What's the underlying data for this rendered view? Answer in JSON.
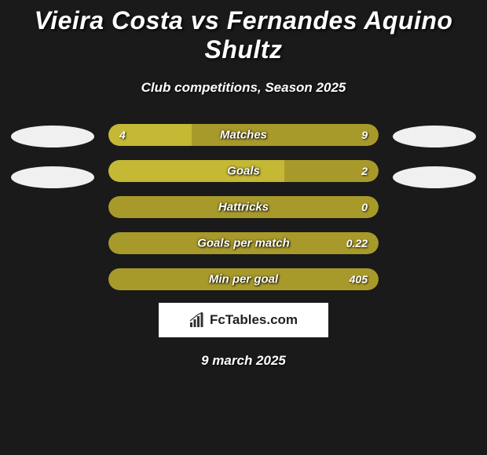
{
  "background_color": "#1a1a1a",
  "title": "Vieira Costa vs Fernandes Aquino Shultz",
  "title_color": "#ffffff",
  "title_fontsize": 32,
  "subtitle": "Club competitions, Season 2025",
  "subtitle_color": "#ffffff",
  "subtitle_fontsize": 17,
  "player_left_color": "#f0f0f0",
  "player_right_color": "#f0f0f0",
  "bar_base_color": "#a89a2a",
  "bar_fill_color": "#c4b834",
  "bar_text_color": "#ffffff",
  "stats": [
    {
      "label": "Matches",
      "left_value": "4",
      "right_value": "9",
      "fill_pct": 30.8
    },
    {
      "label": "Goals",
      "left_value": "",
      "right_value": "2",
      "fill_pct": 65.0
    },
    {
      "label": "Hattricks",
      "left_value": "",
      "right_value": "0",
      "fill_pct": 0
    },
    {
      "label": "Goals per match",
      "left_value": "",
      "right_value": "0.22",
      "fill_pct": 0
    },
    {
      "label": "Min per goal",
      "left_value": "",
      "right_value": "405",
      "fill_pct": 0
    }
  ],
  "left_badges": [
    {
      "color": "#f0f0f0"
    },
    {
      "color": "#f0f0f0"
    }
  ],
  "right_badges": [
    {
      "color": "#f0f0f0"
    },
    {
      "color": "#f0f0f0"
    }
  ],
  "brand": {
    "text": "FcTables.com",
    "text_color": "#222222",
    "bg_color": "#ffffff",
    "icon_color": "#333333"
  },
  "date_text": "9 march 2025",
  "date_color": "#ffffff"
}
